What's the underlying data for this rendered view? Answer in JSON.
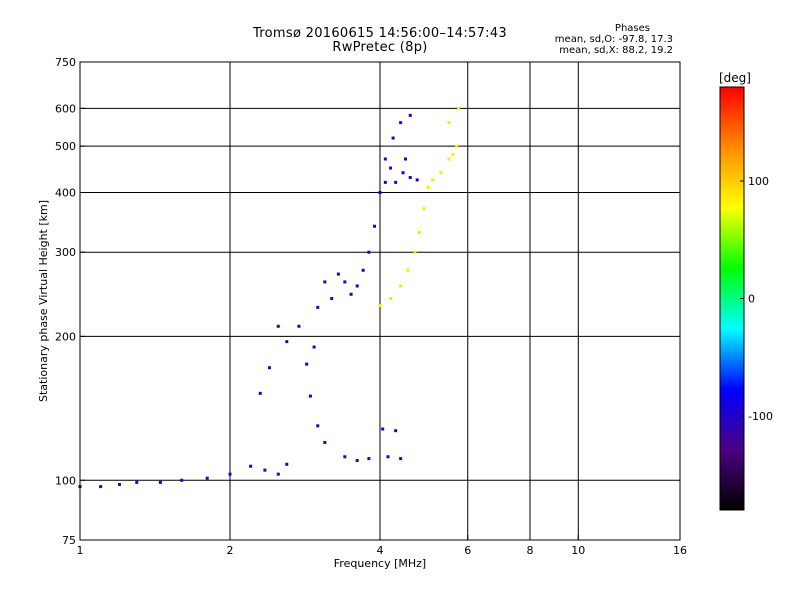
{
  "header": {
    "title_line1": "Tromsø 20160615 14:56:00–14:57:43",
    "title_line2": "RwPretec (8p)",
    "stats_title": "Phases",
    "stats_o": "mean, sd,O: -97.8, 17.3",
    "stats_x": "mean, sd,X: 88.2, 19.2"
  },
  "chart_data": {
    "type": "scatter",
    "title": "Tromsø 20160615 14:56:00–14:57:43",
    "subtitle": "RwPretec (8p)",
    "xlabel": "Frequency [MHz]",
    "ylabel": "Stationary phase Virtual Height [km]",
    "xscale": "log",
    "yscale": "log",
    "xlim": [
      1,
      16
    ],
    "ylim": [
      75,
      750
    ],
    "xticks": [
      1,
      2,
      4,
      6,
      8,
      10,
      16
    ],
    "xtick_labels": [
      "1",
      "2",
      "4",
      "6",
      "8",
      "10",
      "16"
    ],
    "yticks": [
      75,
      100,
      200,
      300,
      400,
      500,
      600,
      750
    ],
    "ytick_labels": [
      "75",
      "100",
      "200",
      "300",
      "400",
      "500",
      "600",
      "750"
    ],
    "grid": true,
    "colorbar": {
      "label": "[deg]",
      "range": [
        -180,
        180
      ],
      "ticks": [
        100,
        0,
        -100
      ],
      "tick_labels": [
        "100",
        "0",
        "-100"
      ],
      "colors": [
        "#000000",
        "#4b0082",
        "#0000ff",
        "#00ffff",
        "#00ff00",
        "#ffff00",
        "#ff8c00",
        "#ff0000"
      ]
    },
    "series": [
      {
        "name": "O-mode",
        "color_phase": -97.8,
        "points": [
          [
            1.0,
            97
          ],
          [
            1.1,
            97
          ],
          [
            1.2,
            98
          ],
          [
            1.3,
            99
          ],
          [
            1.45,
            99
          ],
          [
            1.6,
            100
          ],
          [
            1.8,
            101
          ],
          [
            2.0,
            103
          ],
          [
            2.2,
            107
          ],
          [
            2.35,
            105
          ],
          [
            2.5,
            103
          ],
          [
            2.6,
            108
          ],
          [
            2.5,
            210
          ],
          [
            2.4,
            172
          ],
          [
            2.3,
            152
          ],
          [
            2.6,
            195
          ],
          [
            2.75,
            210
          ],
          [
            2.85,
            175
          ],
          [
            2.95,
            190
          ],
          [
            3.0,
            230
          ],
          [
            3.1,
            260
          ],
          [
            3.2,
            240
          ],
          [
            3.3,
            270
          ],
          [
            3.4,
            260
          ],
          [
            3.5,
            245
          ],
          [
            3.6,
            255
          ],
          [
            3.7,
            275
          ],
          [
            3.8,
            300
          ],
          [
            3.9,
            340
          ],
          [
            4.0,
            400
          ],
          [
            4.1,
            470
          ],
          [
            4.25,
            520
          ],
          [
            4.4,
            560
          ],
          [
            4.6,
            580
          ],
          [
            4.2,
            450
          ],
          [
            4.3,
            420
          ],
          [
            4.45,
            440
          ],
          [
            4.6,
            430
          ],
          [
            4.75,
            425
          ],
          [
            4.1,
            420
          ],
          [
            4.5,
            470
          ],
          [
            2.9,
            150
          ],
          [
            3.0,
            130
          ],
          [
            3.1,
            120
          ],
          [
            3.4,
            112
          ],
          [
            3.6,
            110
          ],
          [
            3.8,
            111
          ],
          [
            4.05,
            128
          ],
          [
            4.3,
            127
          ],
          [
            4.15,
            112
          ],
          [
            4.4,
            111
          ]
        ]
      },
      {
        "name": "X-mode",
        "color_phase": 88.2,
        "points": [
          [
            4.0,
            232
          ],
          [
            4.2,
            240
          ],
          [
            4.4,
            255
          ],
          [
            4.55,
            275
          ],
          [
            4.7,
            300
          ],
          [
            4.8,
            330
          ],
          [
            4.9,
            370
          ],
          [
            5.0,
            410
          ],
          [
            5.1,
            425
          ],
          [
            5.3,
            440
          ],
          [
            5.5,
            470
          ],
          [
            5.6,
            480
          ],
          [
            5.7,
            500
          ],
          [
            5.5,
            560
          ],
          [
            5.75,
            600
          ]
        ]
      }
    ]
  }
}
